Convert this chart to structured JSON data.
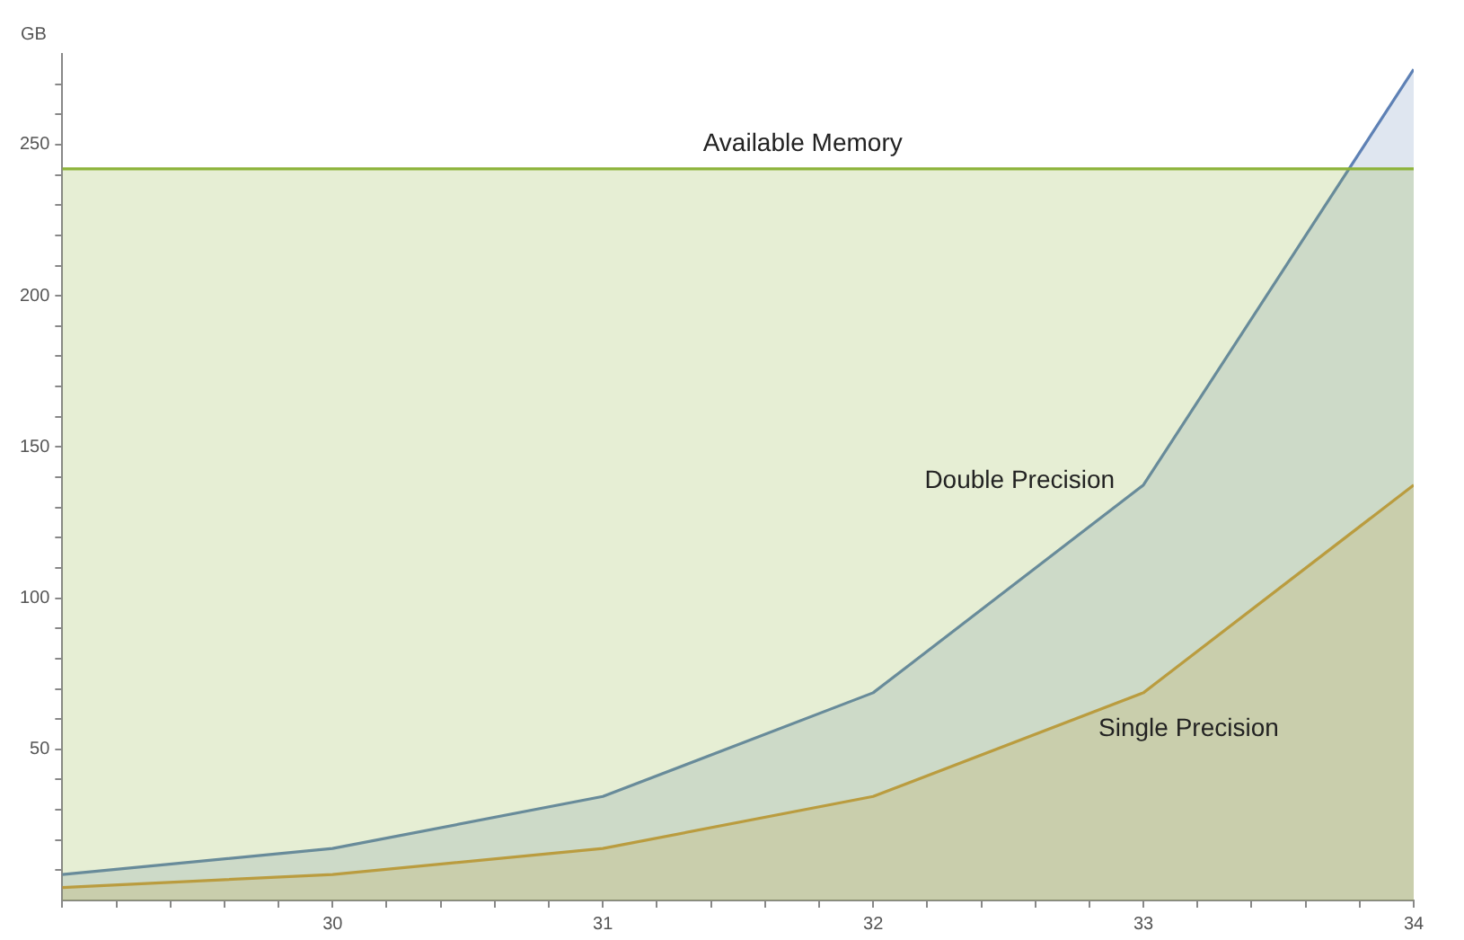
{
  "chart_data": {
    "type": "area",
    "ylabel": "GB",
    "x": [
      29,
      30,
      31,
      32,
      33,
      34
    ],
    "series": [
      {
        "name": "Available Memory",
        "color": "#8db33a",
        "values": [
          242,
          242,
          242,
          242,
          242,
          242
        ]
      },
      {
        "name": "Double Precision",
        "color": "#5e81b5",
        "values": [
          8.6,
          17.2,
          34.4,
          68.7,
          137.4,
          274.9
        ]
      },
      {
        "name": "Single Precision",
        "color": "#e19c24",
        "values": [
          4.3,
          8.6,
          17.2,
          34.4,
          68.7,
          137.4
        ]
      }
    ],
    "xlim": [
      29,
      34
    ],
    "ylim": [
      0,
      280
    ],
    "xticks": [
      {
        "value": 29,
        "label": null
      },
      {
        "value": 29.2,
        "label": null
      },
      {
        "value": 29.4,
        "label": null
      },
      {
        "value": 29.6,
        "label": null
      },
      {
        "value": 29.8,
        "label": null
      },
      30,
      {
        "value": 30.2,
        "label": null
      },
      {
        "value": 30.4,
        "label": null
      },
      {
        "value": 30.6,
        "label": null
      },
      {
        "value": 30.8,
        "label": null
      },
      31,
      {
        "value": 31.2,
        "label": null
      },
      {
        "value": 31.4,
        "label": null
      },
      {
        "value": 31.6,
        "label": null
      },
      {
        "value": 31.8,
        "label": null
      },
      32,
      {
        "value": 32.2,
        "label": null
      },
      {
        "value": 32.4,
        "label": null
      },
      {
        "value": 32.6,
        "label": null
      },
      {
        "value": 32.8,
        "label": null
      },
      33,
      {
        "value": 33.2,
        "label": null
      },
      {
        "value": 33.4,
        "label": null
      },
      {
        "value": 33.6,
        "label": null
      },
      {
        "value": 33.8,
        "label": null
      },
      34
    ],
    "yticks": [
      {
        "value": 10,
        "label": null
      },
      {
        "value": 20,
        "label": null
      },
      {
        "value": 30,
        "label": null
      },
      {
        "value": 40,
        "label": null
      },
      50,
      {
        "value": 60,
        "label": null
      },
      {
        "value": 70,
        "label": null
      },
      {
        "value": 80,
        "label": null
      },
      {
        "value": 90,
        "label": null
      },
      100,
      {
        "value": 110,
        "label": null
      },
      {
        "value": 120,
        "label": null
      },
      {
        "value": 130,
        "label": null
      },
      {
        "value": 140,
        "label": null
      },
      150,
      {
        "value": 160,
        "label": null
      },
      {
        "value": 170,
        "label": null
      },
      {
        "value": 180,
        "label": null
      },
      {
        "value": 190,
        "label": null
      },
      200,
      {
        "value": 210,
        "label": null
      },
      {
        "value": 220,
        "label": null
      },
      {
        "value": 230,
        "label": null
      },
      {
        "value": 240,
        "label": null
      },
      250,
      {
        "value": 260,
        "label": null
      },
      {
        "value": 270,
        "label": null
      }
    ],
    "grid": false,
    "legend": false,
    "marker": "none",
    "line_style": "solid"
  }
}
